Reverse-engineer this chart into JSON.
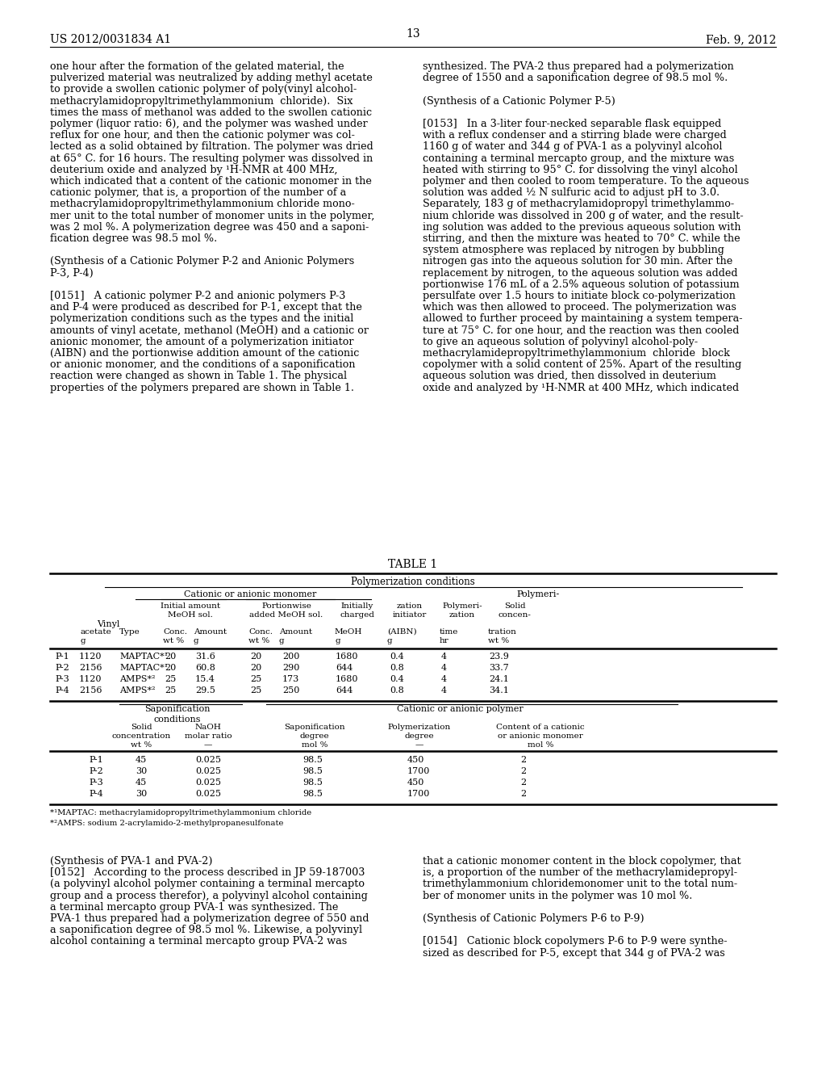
{
  "page_header_left": "US 2012/0031834 A1",
  "page_header_right": "Feb. 9, 2012",
  "page_number": "13",
  "bg_color": "#ffffff",
  "body_fs": 9.2,
  "small_fs": 7.8,
  "table_title_fs": 9.5,
  "left_col_lines": [
    "one hour after the formation of the gelated material, the",
    "pulverized material was neutralized by adding methyl acetate",
    "to provide a swollen cationic polymer of poly(vinyl alcohol-",
    "methacrylamidopropyltrimethylammonium  chloride).  Six",
    "times the mass of methanol was added to the swollen cationic",
    "polymer (liquor ratio: 6), and the polymer was washed under",
    "reflux for one hour, and then the cationic polymer was col-",
    "lected as a solid obtained by filtration. The polymer was dried",
    "at 65° C. for 16 hours. The resulting polymer was dissolved in",
    "deuterium oxide and analyzed by ¹H-NMR at 400 MHz,",
    "which indicated that a content of the cationic monomer in the",
    "cationic polymer, that is, a proportion of the number of a",
    "methacrylamidopropyltrimethylammonium chloride mono-",
    "mer unit to the total number of monomer units in the polymer,",
    "was 2 mol %. A polymerization degree was 450 and a saponi-",
    "fication degree was 98.5 mol %.",
    "",
    "(Synthesis of a Cationic Polymer P-2 and Anionic Polymers",
    "P-3, P-4)",
    "",
    "[0151]   A cationic polymer P-2 and anionic polymers P-3",
    "and P-4 were produced as described for P-1, except that the",
    "polymerization conditions such as the types and the initial",
    "amounts of vinyl acetate, methanol (MeOH) and a cationic or",
    "anionic monomer, the amount of a polymerization initiator",
    "(AIBN) and the portionwise addition amount of the cationic",
    "or anionic monomer, and the conditions of a saponification",
    "reaction were changed as shown in Table 1. The physical",
    "properties of the polymers prepared are shown in Table 1."
  ],
  "right_col_lines": [
    "synthesized. The PVA-2 thus prepared had a polymerization",
    "degree of 1550 and a saponification degree of 98.5 mol %.",
    "",
    "(Synthesis of a Cationic Polymer P-5)",
    "",
    "[0153]   In a 3-liter four-necked separable flask equipped",
    "with a reflux condenser and a stirring blade were charged",
    "1160 g of water and 344 g of PVA-1 as a polyvinyl alcohol",
    "containing a terminal mercapto group, and the mixture was",
    "heated with stirring to 95° C. for dissolving the vinyl alcohol",
    "polymer and then cooled to room temperature. To the aqueous",
    "solution was added ½ N sulfuric acid to adjust pH to 3.0.",
    "Separately, 183 g of methacrylamidopropyl trimethylammo-",
    "nium chloride was dissolved in 200 g of water, and the result-",
    "ing solution was added to the previous aqueous solution with",
    "stirring, and then the mixture was heated to 70° C. while the",
    "system atmosphere was replaced by nitrogen by bubbling",
    "nitrogen gas into the aqueous solution for 30 min. After the",
    "replacement by nitrogen, to the aqueous solution was added",
    "portionwise 176 mL of a 2.5% aqueous solution of potassium",
    "persulfate over 1.5 hours to initiate block co-polymerization",
    "which was then allowed to proceed. The polymerization was",
    "allowed to further proceed by maintaining a system tempera-",
    "ture at 75° C. for one hour, and the reaction was then cooled",
    "to give an aqueous solution of polyvinyl alcohol-poly-",
    "methacrylamidepropyltrimethylammonium  chloride  block",
    "copolymer with a solid content of 25%. Apart of the resulting",
    "aqueous solution was dried, then dissolved in deuterium",
    "oxide and analyzed by ¹H-NMR at 400 MHz, which indicated"
  ],
  "bottom_left_lines": [
    "(Synthesis of PVA-1 and PVA-2)",
    "[0152]   According to the process described in JP 59-187003",
    "(a polyvinyl alcohol polymer containing a terminal mercapto",
    "group and a process therefor), a polyvinyl alcohol containing",
    "a terminal mercapto group PVA-1 was synthesized. The",
    "PVA-1 thus prepared had a polymerization degree of 550 and",
    "a saponification degree of 98.5 mol %. Likewise, a polyvinyl",
    "alcohol containing a terminal mercapto group PVA-2 was"
  ],
  "bottom_right_lines": [
    "that a cationic monomer content in the block copolymer, that",
    "is, a proportion of the number of the methacrylamidepropyl-",
    "trimethylammonium chloridemonomer unit to the total num-",
    "ber of monomer units in the polymer was 10 mol %.",
    "",
    "(Synthesis of Cationic Polymers P-6 to P-9)",
    "",
    "[0154]   Cationic block copolymers P-6 to P-9 were synthe-",
    "sized as described for P-5, except that 344 g of PVA-2 was"
  ],
  "footnotes": [
    "*¹MAPTAC: methacrylamidopropyltrimethylammonium chloride",
    "*²AMPS: sodium 2-acrylamido-2-methylpropanesulfonate"
  ],
  "table1_data": [
    [
      "P-1",
      "1120",
      "MAPTAC*¹",
      "20",
      "31.6",
      "20",
      "200",
      "1680",
      "0.4",
      "4",
      "23.9"
    ],
    [
      "P-2",
      "2156",
      "MAPTAC*¹",
      "20",
      "60.8",
      "20",
      "290",
      "644",
      "0.8",
      "4",
      "33.7"
    ],
    [
      "P-3",
      "1120",
      "AMPS*²",
      "25",
      "15.4",
      "25",
      "173",
      "1680",
      "0.4",
      "4",
      "24.1"
    ],
    [
      "P-4",
      "2156",
      "AMPS*²",
      "25",
      "29.5",
      "25",
      "250",
      "644",
      "0.8",
      "4",
      "34.1"
    ]
  ],
  "table2_data": [
    [
      "P-1",
      "45",
      "0.025",
      "98.5",
      "450",
      "2"
    ],
    [
      "P-2",
      "30",
      "0.025",
      "98.5",
      "1700",
      "2"
    ],
    [
      "P-3",
      "45",
      "0.025",
      "98.5",
      "450",
      "2"
    ],
    [
      "P-4",
      "30",
      "0.025",
      "98.5",
      "1700",
      "2"
    ]
  ]
}
